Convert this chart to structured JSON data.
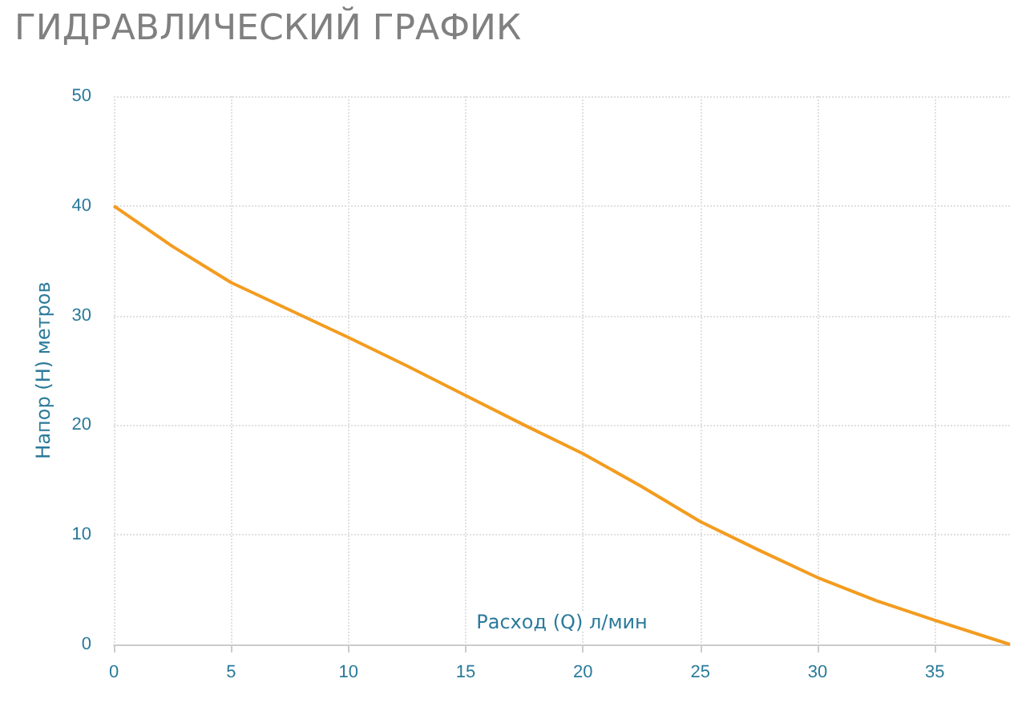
{
  "chart_data": {
    "type": "line",
    "title": "ГИДРАВЛИЧЕСКИЙ ГРАФИК",
    "xlabel": "Расход (Q) л/мин",
    "ylabel": "Напор (H) метров",
    "x": [
      0,
      2.5,
      5,
      7.5,
      10,
      12.5,
      15,
      17.5,
      20,
      22.5,
      25,
      27.5,
      30,
      32.5,
      35,
      38.2
    ],
    "series": [
      {
        "color": "#f39c1f",
        "values": [
          40,
          36.3,
          33,
          30.5,
          28,
          25.4,
          22.7,
          20,
          17.4,
          14.4,
          11.2,
          8.6,
          6.1,
          4,
          2.2,
          0
        ]
      }
    ],
    "xlim": [
      0,
      38.2
    ],
    "xticks": [
      0,
      5,
      10,
      15,
      20,
      25,
      30,
      35
    ],
    "ylim": [
      0,
      50
    ],
    "yticks": [
      0,
      10,
      20,
      30,
      40,
      50
    ],
    "grid": true,
    "marker": "none",
    "line_style": "solid"
  }
}
